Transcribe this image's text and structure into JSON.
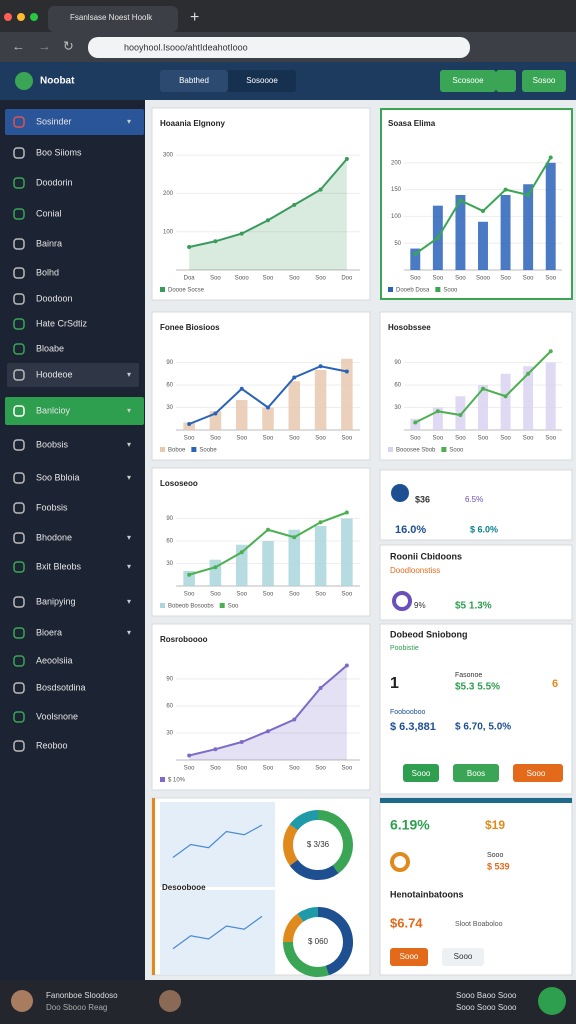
{
  "browser": {
    "tab": "Fsanlsase Noest Hoolk",
    "url": "hooyhool.Isooo/ahtIdeahotIooo"
  },
  "header": {
    "logo": "Noobat",
    "tabs": [
      "Babthed",
      "Sosoooe"
    ],
    "buttons": [
      "Scosooe",
      "Sosoo"
    ]
  },
  "sidebar": {
    "items": [
      "Sosinder",
      "Boo Siioms",
      "Doodorin",
      "Conial",
      "Bainra",
      "Bolhd",
      "Doodoon",
      "Hate CrSdtiz",
      "Bloabe",
      "Hoodeoe",
      "Banlcioy",
      "Boobsis",
      "Soo Bbloia",
      "Foobsis",
      "Bhodone",
      "Bxit Bleobs",
      "Banipying",
      "Bioera",
      "Aeoolsiia",
      "Bosdsotdina",
      "Voolsnone",
      "Reoboo"
    ]
  },
  "charts": [
    {
      "type": "line",
      "title": "Hoaania Elgnony",
      "categories": [
        "Doa",
        "Soo",
        "Sooo",
        "Soo",
        "Soo",
        "Soo",
        "Doo"
      ],
      "ylim": [
        0,
        350
      ],
      "yticks": [
        100,
        200,
        300
      ],
      "series": [
        {
          "name": "Doooe Socse",
          "kind": "area",
          "color": "#3a9a5c",
          "values": [
            60,
            75,
            95,
            130,
            170,
            210,
            290
          ]
        }
      ]
    },
    {
      "type": "line",
      "title": "Soasa Elima",
      "categories": [
        "Soo",
        "Soo",
        "Soo",
        "Sooo",
        "Soo",
        "Soo",
        "Soo"
      ],
      "ylim": [
        0,
        250
      ],
      "yticks": [
        50,
        100,
        150,
        200
      ],
      "series": [
        {
          "name": "Dooeb Dosa",
          "kind": "bar",
          "color": "#2a63b8",
          "values": [
            40,
            120,
            140,
            90,
            140,
            160,
            200
          ]
        },
        {
          "name": "Sooo",
          "kind": "line",
          "color": "#3aa655",
          "values": [
            30,
            60,
            130,
            110,
            150,
            140,
            210
          ]
        }
      ]
    },
    {
      "type": "line",
      "title": "Fonee Biosioos",
      "categories": [
        "Soo",
        "Soo",
        "Soo",
        "Soo",
        "Soo",
        "Soo",
        "Soo"
      ],
      "ylim": [
        0,
        120
      ],
      "yticks": [
        30,
        60,
        90
      ],
      "series": [
        {
          "name": "Boboe",
          "kind": "bar",
          "color": "#e8c9b0",
          "values": [
            10,
            25,
            40,
            30,
            65,
            80,
            95
          ]
        },
        {
          "name": "Soobe",
          "kind": "line",
          "color": "#2a63b8",
          "values": [
            8,
            22,
            55,
            30,
            70,
            85,
            78
          ]
        }
      ]
    },
    {
      "type": "line",
      "title": "Hosobssee",
      "categories": [
        "Soo",
        "Soo",
        "Soo",
        "Soo",
        "Soo",
        "Soo",
        "Soo"
      ],
      "ylim": [
        0,
        120
      ],
      "yticks": [
        30,
        60,
        90
      ],
      "series": [
        {
          "name": "Booosee Sbob",
          "kind": "bar",
          "color": "#d9d2f2",
          "values": [
            15,
            30,
            45,
            60,
            75,
            85,
            90
          ]
        },
        {
          "name": "Sooo",
          "kind": "line",
          "color": "#4caf50",
          "values": [
            10,
            25,
            20,
            55,
            45,
            75,
            105
          ]
        }
      ]
    },
    {
      "type": "line",
      "title": "Lososeoo",
      "categories": [
        "Soo",
        "Soo",
        "Soo",
        "Soo",
        "Soo",
        "Soo",
        "Soo"
      ],
      "ylim": [
        0,
        120
      ],
      "yticks": [
        30,
        60,
        90
      ],
      "series": [
        {
          "name": "Bobeob Bosoobs",
          "kind": "bar",
          "color": "#a9d6dc",
          "values": [
            20,
            35,
            55,
            60,
            75,
            80,
            90
          ]
        },
        {
          "name": "Soo",
          "kind": "line",
          "color": "#4caf50",
          "values": [
            15,
            25,
            45,
            75,
            65,
            85,
            98
          ]
        }
      ]
    },
    {
      "type": "line",
      "title": "Rosroboooo",
      "categories": [
        "Soo",
        "Soo",
        "Soo",
        "Soo",
        "Soo",
        "Soo",
        "Soo"
      ],
      "ylim": [
        0,
        120
      ],
      "yticks": [
        30,
        60,
        90
      ],
      "series": [
        {
          "name": "$ 10%",
          "kind": "area",
          "color": "#7e6bc9",
          "values": [
            5,
            12,
            20,
            32,
            45,
            80,
            105
          ]
        }
      ]
    },
    {
      "type": "line",
      "title": "",
      "categories": [
        "",
        "",
        "",
        "",
        "",
        ""
      ],
      "ylim": [
        0,
        100
      ],
      "yticks": [],
      "series": [
        {
          "name": "",
          "kind": "line",
          "color": "#4a8ad0",
          "values": [
            30,
            50,
            45,
            70,
            65,
            80
          ]
        }
      ]
    },
    {
      "type": "line",
      "title": "Desoobooe",
      "categories": [
        "",
        "",
        "",
        "",
        "",
        ""
      ],
      "ylim": [
        0,
        100
      ],
      "yticks": [],
      "series": [
        {
          "name": "",
          "kind": "line",
          "color": "#4a8ad0",
          "values": [
            25,
            45,
            40,
            60,
            55,
            75
          ]
        }
      ]
    },
    {
      "type": "pie",
      "center_label": "$ 3/36",
      "values": [
        40,
        25,
        20,
        15
      ],
      "colors": [
        "#3aa655",
        "#1d4f91",
        "#e08a1e",
        "#1f9aa8"
      ]
    },
    {
      "type": "pie",
      "center_label": "$ 060",
      "values": [
        45,
        30,
        15,
        10
      ],
      "colors": [
        "#1d4f91",
        "#3aa655",
        "#e08a1e",
        "#1f9aa8"
      ]
    }
  ],
  "widgets": [
    {
      "texts": [
        "$36",
        "6.5%",
        "16.0%",
        "$ 6.0%"
      ]
    },
    {
      "texts": [
        "Roonii Cbidoons",
        "Doodloonstiss",
        "9%",
        "$5 1.3%"
      ]
    },
    {
      "texts": [
        "Dobeod Sniobong",
        "Poobistie",
        "1",
        "Fasonoe",
        "$5.3 5.5%",
        "6",
        "Foobooboo",
        "$ 6.3,881",
        "$ 6.70, 5.0%",
        "Sooo",
        "Boos",
        "Sooo"
      ]
    },
    {
      "texts": [
        "6.19%",
        "$19",
        "Sooo",
        "$ 539",
        "Henotainbatoons",
        "$6.74",
        "Sloot Boaboloo",
        "Sooo",
        "Sooo"
      ]
    }
  ],
  "footer": {
    "user": "Fanonboe Sloodoso",
    "role": "Doo Sbooo Reag",
    "status1": "Sooo Baoo Sooo",
    "status2": "Sooo Sooo Sooo"
  }
}
